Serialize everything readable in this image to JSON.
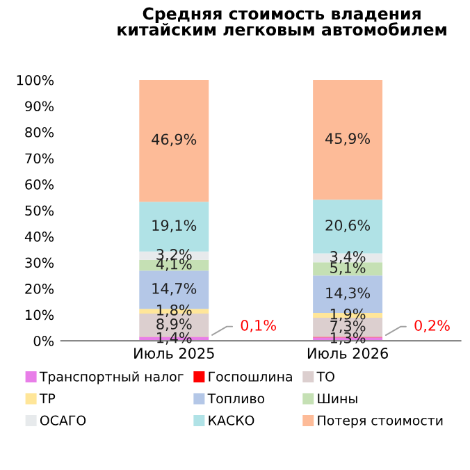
{
  "chart_data": {
    "type": "bar",
    "stacked": true,
    "title": "Средняя стоимость владения\nкитайским легковым автомобилем",
    "categories": [
      "Июль 2025",
      "Июль 2026"
    ],
    "series": [
      {
        "name": "Транспортный налог",
        "color": "#e87ee8",
        "values": [
          1.4,
          1.3
        ],
        "value_labels": [
          "1,4%",
          "1,3%"
        ]
      },
      {
        "name": "Госпошлина",
        "color": "#ff0000",
        "values": [
          0.1,
          0.2
        ],
        "value_labels": [
          "0,1%",
          "0,2%"
        ]
      },
      {
        "name": "ТО",
        "color": "#dccfcf",
        "values": [
          8.9,
          7.3
        ],
        "value_labels": [
          "8,9%",
          "7,3%"
        ]
      },
      {
        "name": "ТР",
        "color": "#ffe699",
        "values": [
          1.8,
          1.9
        ],
        "value_labels": [
          "1,8%",
          "1,9%"
        ]
      },
      {
        "name": "Топливо",
        "color": "#b4c7e7",
        "values": [
          14.7,
          14.3
        ],
        "value_labels": [
          "14,7%",
          "14,3%"
        ]
      },
      {
        "name": "Шины",
        "color": "#c5e0b4",
        "values": [
          4.1,
          5.1
        ],
        "value_labels": [
          "4,1%",
          "5,1%"
        ]
      },
      {
        "name": "ОСАГО",
        "color": "#e7eaec",
        "values": [
          3.2,
          3.4
        ],
        "value_labels": [
          "3,2%",
          "3,4%"
        ]
      },
      {
        "name": "КАСКО",
        "color": "#b0e2e6",
        "values": [
          19.1,
          20.6
        ],
        "value_labels": [
          "19,1%",
          "20,6%"
        ]
      },
      {
        "name": "Потеря стоимости",
        "color": "#fdbb98",
        "values": [
          46.9,
          45.9
        ],
        "value_labels": [
          "46,9%",
          "45,9%"
        ]
      }
    ],
    "ylim": [
      0,
      100
    ],
    "yticks": [
      {
        "value": 0,
        "label": "0%"
      },
      {
        "value": 10,
        "label": "10%"
      },
      {
        "value": 20,
        "label": "20%"
      },
      {
        "value": 30,
        "label": "30%"
      },
      {
        "value": 40,
        "label": "40%"
      },
      {
        "value": 50,
        "label": "50%"
      },
      {
        "value": 60,
        "label": "60%"
      },
      {
        "value": 70,
        "label": "70%"
      },
      {
        "value": 80,
        "label": "80%"
      },
      {
        "value": 90,
        "label": "90%"
      },
      {
        "value": 100,
        "label": "100%"
      }
    ],
    "grid": false,
    "legend": "bottom"
  }
}
